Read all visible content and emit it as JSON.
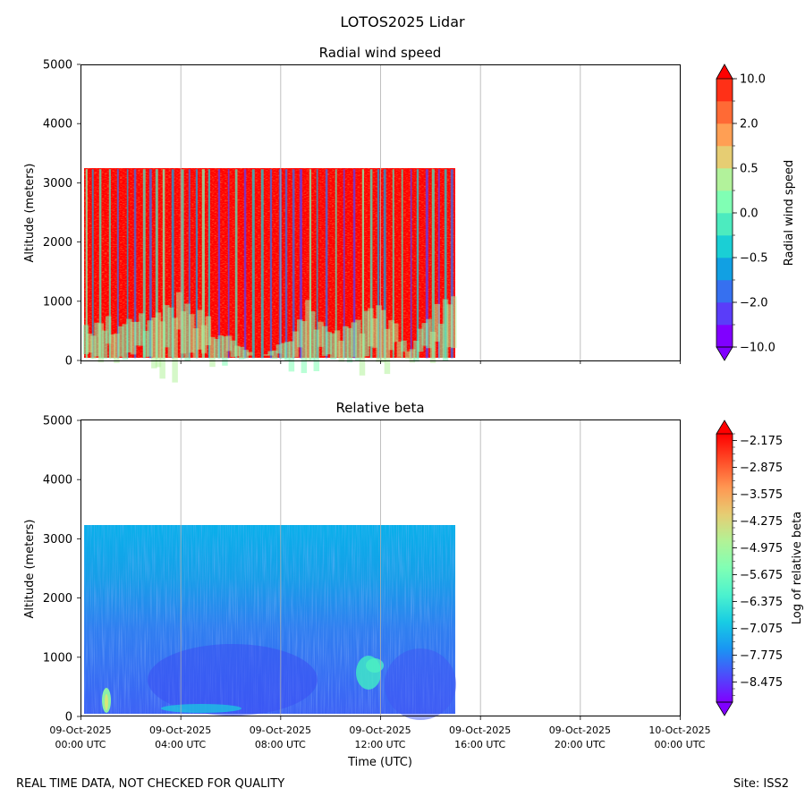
{
  "figure_title": "LOTOS2025 Lidar",
  "footer": {
    "quality_note": "REAL TIME DATA, NOT CHECKED FOR QUALITY",
    "site": "Site: ISS2"
  },
  "colors": {
    "background": "#ffffff",
    "grid": "#b0b0b0",
    "axis": "#000000"
  },
  "chart_data": [
    {
      "type": "heatmap",
      "title": "Radial wind speed",
      "xlabel": "",
      "ylabel": "Altitude (meters)",
      "xlim_hours": [
        0,
        24
      ],
      "ylim": [
        0,
        5000
      ],
      "yticks": [
        0,
        1000,
        2000,
        3000,
        4000,
        5000
      ],
      "data_extent": {
        "x_hours": [
          0.1,
          15
        ],
        "altitude_m": [
          40,
          3230
        ]
      },
      "colorbar": {
        "label": "Radial wind speed",
        "boundaries": [
          -10.0,
          -5.0,
          -2.0,
          -1.0,
          -0.5,
          -0.2,
          0.0,
          0.2,
          0.5,
          1.0,
          2.0,
          5.0,
          10.0
        ],
        "tick_labels": [
          "10.0",
          "2.0",
          "0.5",
          "0.0",
          "−0.5",
          "−2.0",
          "−10.0"
        ],
        "tick_values": [
          10.0,
          2.0,
          0.5,
          0.0,
          -0.5,
          -2.0,
          -10.0
        ],
        "colors": [
          "#8000ff",
          "#5a3df9",
          "#3670f0",
          "#11a0e3",
          "#1acfd5",
          "#4cebbf",
          "#80ffb4",
          "#b2f29b",
          "#e6cd73",
          "#ff9f54",
          "#ff6a35",
          "#ff3017"
        ],
        "extend": "both",
        "over_color": "#ff0000",
        "under_color": "#8000ff"
      }
    },
    {
      "type": "heatmap",
      "title": "Relative beta",
      "xlabel": "Time (UTC)",
      "ylabel": "Altitude (meters)",
      "xlim_hours": [
        0,
        24
      ],
      "ylim": [
        0,
        5000
      ],
      "yticks": [
        0,
        1000,
        2000,
        3000,
        4000,
        5000
      ],
      "xticks_hours": [
        0,
        4,
        8,
        12,
        16,
        20,
        24
      ],
      "xtick_labels": [
        [
          "09-Oct-2025",
          "00:00 UTC"
        ],
        [
          "09-Oct-2025",
          "04:00 UTC"
        ],
        [
          "09-Oct-2025",
          "08:00 UTC"
        ],
        [
          "09-Oct-2025",
          "12:00 UTC"
        ],
        [
          "09-Oct-2025",
          "16:00 UTC"
        ],
        [
          "09-Oct-2025",
          "20:00 UTC"
        ],
        [
          "10-Oct-2025",
          "00:00 UTC"
        ]
      ],
      "data_extent": {
        "x_hours": [
          0.1,
          15
        ],
        "altitude_m": [
          40,
          3230
        ]
      },
      "colorbar": {
        "label": "Log of relative beta",
        "vmin": -9.0,
        "vmax": -2.0,
        "tick_values": [
          -2.175,
          -2.875,
          -3.575,
          -4.275,
          -4.975,
          -5.675,
          -6.375,
          -7.075,
          -7.775,
          -8.475
        ],
        "tick_labels": [
          "−2.175",
          "−2.875",
          "−3.575",
          "−4.275",
          "−4.975",
          "−5.675",
          "−6.375",
          "−7.075",
          "−7.775",
          "−8.475"
        ],
        "extend": "both"
      }
    }
  ]
}
